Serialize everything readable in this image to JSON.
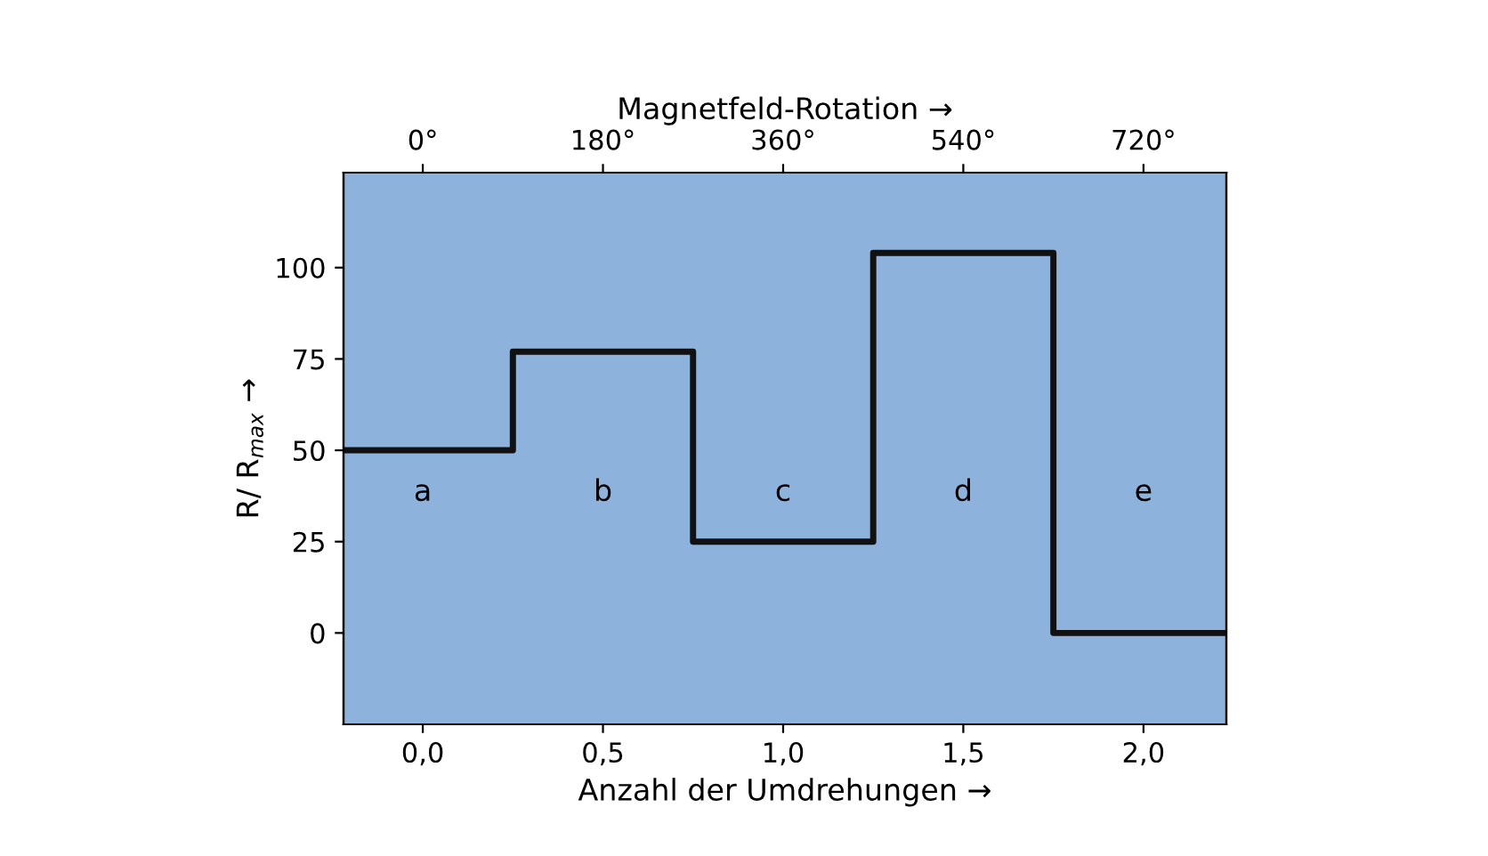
{
  "chart_data": {
    "type": "step",
    "xlabel": "Anzahl der Umdrehungen →",
    "ylabel": "R/ R$_{max}$ →",
    "x2label": "Magnetfeld-Rotation →",
    "x": [
      -0.22,
      0.25,
      0.75,
      1.25,
      1.75,
      2.23
    ],
    "series": [
      {
        "color": "#111111",
        "values": [
          50,
          77,
          25,
          104,
          0,
          0
        ]
      }
    ],
    "xlim": [
      -0.22,
      2.23
    ],
    "xticks": [
      {
        "value": 0,
        "label": "0,0"
      },
      {
        "value": 0.5,
        "label": "0,5"
      },
      {
        "value": 1,
        "label": "1,0"
      },
      {
        "value": 1.5,
        "label": "1,5"
      },
      {
        "value": 2,
        "label": "2,0"
      }
    ],
    "x2lim": [
      -79.2,
      802.8
    ],
    "x2ticks": [
      {
        "value": 0,
        "label": "0°"
      },
      {
        "value": 180,
        "label": "180°"
      },
      {
        "value": 360,
        "label": "360°"
      },
      {
        "value": 540,
        "label": "540°"
      },
      {
        "value": 720,
        "label": "720°"
      }
    ],
    "ylim": [
      -25,
      126
    ],
    "yticks": [
      0,
      25,
      50,
      75,
      100
    ],
    "annotations": [
      "a",
      "b",
      "c",
      "d",
      "e"
    ],
    "grid": false,
    "legend": false
  }
}
